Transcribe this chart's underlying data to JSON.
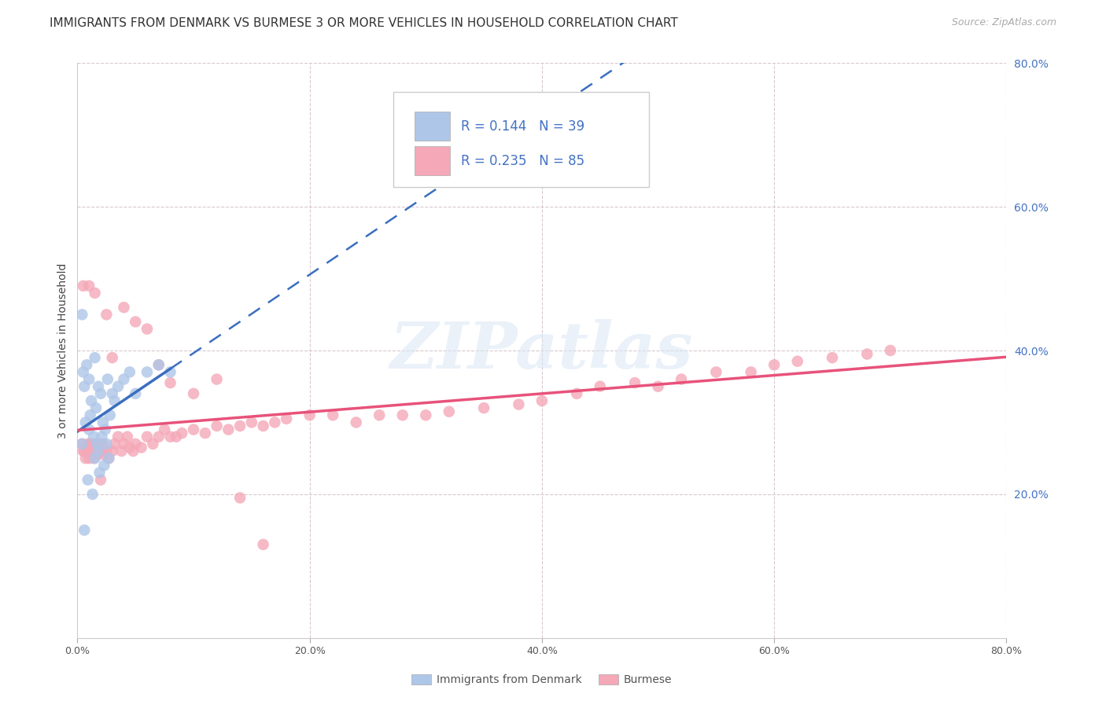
{
  "title": "IMMIGRANTS FROM DENMARK VS BURMESE 3 OR MORE VEHICLES IN HOUSEHOLD CORRELATION CHART",
  "source_text": "Source: ZipAtlas.com",
  "ylabel": "3 or more Vehicles in Household",
  "xlim": [
    0.0,
    0.8
  ],
  "ylim": [
    0.0,
    0.8
  ],
  "xtick_labels": [
    "0.0%",
    "20.0%",
    "40.0%",
    "60.0%",
    "80.0%"
  ],
  "xtick_vals": [
    0.0,
    0.2,
    0.4,
    0.6,
    0.8
  ],
  "right_ytick_labels": [
    "80.0%",
    "60.0%",
    "40.0%",
    "20.0%"
  ],
  "right_ytick_vals": [
    0.8,
    0.6,
    0.4,
    0.2
  ],
  "legend_label1": "Immigrants from Denmark",
  "legend_label2": "Burmese",
  "denmark_color": "#aec6e8",
  "burmese_color": "#f4a8b8",
  "denmark_line_color": "#3a6fbf",
  "burmese_line_color": "#e8527a",
  "watermark": "ZIPatlas",
  "background_color": "#ffffff",
  "grid_color": "#d8c8d0",
  "title_color": "#333333",
  "right_axis_color": "#4472c4",
  "title_fontsize": 11,
  "source_fontsize": 9,
  "legend_r1": "0.144",
  "legend_n1": "39",
  "legend_r2": "0.235",
  "legend_n2": "85",
  "dk_x": [
    0.004,
    0.005,
    0.006,
    0.007,
    0.008,
    0.009,
    0.01,
    0.01,
    0.011,
    0.012,
    0.013,
    0.014,
    0.015,
    0.015,
    0.016,
    0.017,
    0.018,
    0.018,
    0.019,
    0.02,
    0.021,
    0.022,
    0.023,
    0.024,
    0.025,
    0.026,
    0.027,
    0.028,
    0.03,
    0.032,
    0.035,
    0.04,
    0.045,
    0.05,
    0.06,
    0.07,
    0.08,
    0.004,
    0.006
  ],
  "dk_y": [
    0.27,
    0.37,
    0.35,
    0.3,
    0.38,
    0.22,
    0.36,
    0.29,
    0.31,
    0.33,
    0.2,
    0.28,
    0.39,
    0.25,
    0.32,
    0.27,
    0.35,
    0.26,
    0.23,
    0.34,
    0.28,
    0.3,
    0.24,
    0.29,
    0.27,
    0.36,
    0.25,
    0.31,
    0.34,
    0.33,
    0.35,
    0.36,
    0.37,
    0.34,
    0.37,
    0.38,
    0.37,
    0.45,
    0.15
  ],
  "bm_x": [
    0.004,
    0.005,
    0.006,
    0.007,
    0.008,
    0.009,
    0.01,
    0.011,
    0.012,
    0.013,
    0.014,
    0.015,
    0.016,
    0.017,
    0.018,
    0.019,
    0.02,
    0.021,
    0.022,
    0.023,
    0.025,
    0.027,
    0.03,
    0.032,
    0.035,
    0.038,
    0.04,
    0.043,
    0.045,
    0.048,
    0.05,
    0.055,
    0.06,
    0.065,
    0.07,
    0.075,
    0.08,
    0.085,
    0.09,
    0.1,
    0.11,
    0.12,
    0.13,
    0.14,
    0.15,
    0.16,
    0.17,
    0.18,
    0.2,
    0.22,
    0.24,
    0.26,
    0.28,
    0.3,
    0.32,
    0.35,
    0.38,
    0.4,
    0.43,
    0.45,
    0.48,
    0.5,
    0.52,
    0.55,
    0.58,
    0.6,
    0.62,
    0.65,
    0.68,
    0.7,
    0.005,
    0.01,
    0.015,
    0.02,
    0.025,
    0.03,
    0.04,
    0.05,
    0.06,
    0.07,
    0.08,
    0.1,
    0.12,
    0.14,
    0.16
  ],
  "bm_y": [
    0.27,
    0.26,
    0.26,
    0.25,
    0.26,
    0.27,
    0.25,
    0.27,
    0.26,
    0.27,
    0.25,
    0.26,
    0.27,
    0.255,
    0.26,
    0.265,
    0.27,
    0.26,
    0.27,
    0.255,
    0.26,
    0.25,
    0.26,
    0.27,
    0.28,
    0.26,
    0.27,
    0.28,
    0.265,
    0.26,
    0.27,
    0.265,
    0.28,
    0.27,
    0.28,
    0.29,
    0.28,
    0.28,
    0.285,
    0.29,
    0.285,
    0.295,
    0.29,
    0.295,
    0.3,
    0.295,
    0.3,
    0.305,
    0.31,
    0.31,
    0.3,
    0.31,
    0.31,
    0.31,
    0.315,
    0.32,
    0.325,
    0.33,
    0.34,
    0.35,
    0.355,
    0.35,
    0.36,
    0.37,
    0.37,
    0.38,
    0.385,
    0.39,
    0.395,
    0.4,
    0.49,
    0.49,
    0.48,
    0.22,
    0.45,
    0.39,
    0.46,
    0.44,
    0.43,
    0.38,
    0.355,
    0.34,
    0.36,
    0.195,
    0.13
  ]
}
